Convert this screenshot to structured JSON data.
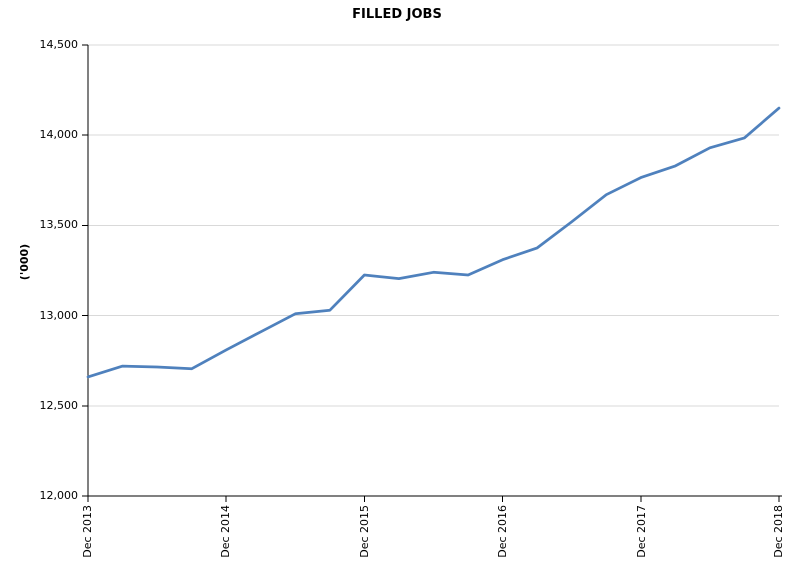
{
  "title": "FILLED JOBS",
  "chart_data": {
    "type": "line",
    "title": "FILLED JOBS",
    "ylabel": "('000)",
    "xlabel": "",
    "legend": "none",
    "grid": true,
    "line_color": "#4F81BD",
    "gridline_color": "#D9D9D9",
    "axis_color": "#000000",
    "ylim": [
      12000,
      14500
    ],
    "y_ticks": [
      12000,
      12500,
      13000,
      13500,
      14000,
      14500
    ],
    "y_tick_labels": [
      "12,000",
      "12,500",
      "13,000",
      "13,500",
      "14,000",
      "14,500"
    ],
    "x_tick_labels": [
      "Dec 2013",
      "Dec 2014",
      "Dec 2015",
      "Dec 2016",
      "Dec 2017",
      "Dec 2018"
    ],
    "categories": [
      "Dec 2013",
      "Mar 2014",
      "Jun 2014",
      "Sep 2014",
      "Dec 2014",
      "Mar 2015",
      "Jun 2015",
      "Sep 2015",
      "Dec 2015",
      "Mar 2016",
      "Jun 2016",
      "Sep 2016",
      "Dec 2016",
      "Mar 2017",
      "Jun 2017",
      "Sep 2017",
      "Dec 2017",
      "Mar 2018",
      "Jun 2018",
      "Sep 2018",
      "Dec 2018"
    ],
    "values": [
      12660,
      12720,
      12715,
      12705,
      12810,
      12910,
      13010,
      13030,
      13225,
      13205,
      13240,
      13225,
      13310,
      13375,
      13520,
      13670,
      13765,
      13830,
      13930,
      13985,
      14150
    ]
  }
}
